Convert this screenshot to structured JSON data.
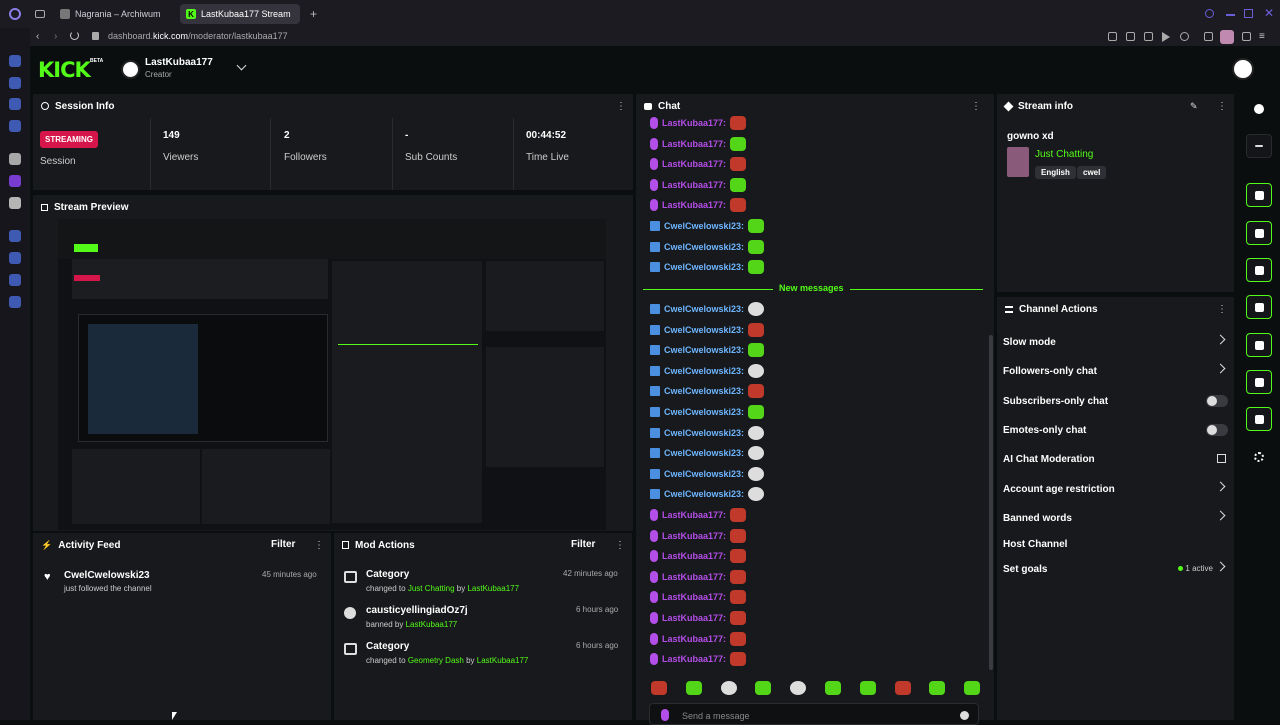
{
  "browser": {
    "tabs": [
      {
        "label": "Nagrania – Archiwum",
        "active": false
      },
      {
        "label": "LastKubaa177 Stream",
        "active": true
      }
    ],
    "new_tab": "+",
    "url_pre": "dashboard.",
    "url_host": "kick.com",
    "url_path": "/moderator/lastkubaa177"
  },
  "header": {
    "logo": "KICK",
    "beta": "BETA",
    "username": "LastKubaa177",
    "role": "Creator"
  },
  "session": {
    "title": "Session Info",
    "status": "STREAMING",
    "status_label": "Session",
    "stats": [
      {
        "value": "149",
        "label": "Viewers"
      },
      {
        "value": "2",
        "label": "Followers"
      },
      {
        "value": "-",
        "label": "Sub Counts"
      },
      {
        "value": "00:44:52",
        "label": "Time Live"
      }
    ]
  },
  "preview": {
    "title": "Stream Preview"
  },
  "activity": {
    "title": "Activity Feed",
    "filter": "Filter",
    "items": [
      {
        "user": "CwelCwelowski23",
        "text": "just followed the channel",
        "time": "45 minutes ago"
      }
    ]
  },
  "mod": {
    "title": "Mod Actions",
    "filter": "Filter",
    "items": [
      {
        "title": "Category",
        "pre": "changed to",
        "target": "Just Chatting",
        "by": "by",
        "actor": "LastKubaa177",
        "time": "42 minutes ago"
      },
      {
        "title": "causticyellingiadOz7j",
        "pre": "banned by",
        "target": "",
        "by": "",
        "actor": "LastKubaa177",
        "time": "6 hours ago"
      },
      {
        "title": "Category",
        "pre": "changed to",
        "target": "Geometry Dash",
        "by": "by",
        "actor": "LastKubaa177",
        "time": "6 hours ago"
      }
    ]
  },
  "chat": {
    "title": "Chat",
    "new_messages": "New messages",
    "rows_top": [
      {
        "user": "LastKubaa177:",
        "kind": "mod",
        "emote": "red"
      },
      {
        "user": "LastKubaa177:",
        "kind": "mod",
        "emote": "green"
      },
      {
        "user": "LastKubaa177:",
        "kind": "mod",
        "emote": "red"
      },
      {
        "user": "LastKubaa177:",
        "kind": "mod",
        "emote": "green"
      },
      {
        "user": "LastKubaa177:",
        "kind": "mod",
        "emote": "red"
      },
      {
        "user": "CwelCwelowski23:",
        "kind": "viewer",
        "emote": "green"
      },
      {
        "user": "CwelCwelowski23:",
        "kind": "viewer",
        "emote": "green"
      },
      {
        "user": "CwelCwelowski23:",
        "kind": "viewer",
        "emote": "green"
      }
    ],
    "rows_bottom": [
      {
        "user": "CwelCwelowski23:",
        "kind": "viewer",
        "emote": "white"
      },
      {
        "user": "CwelCwelowski23:",
        "kind": "viewer",
        "emote": "red"
      },
      {
        "user": "CwelCwelowski23:",
        "kind": "viewer",
        "emote": "green"
      },
      {
        "user": "CwelCwelowski23:",
        "kind": "viewer",
        "emote": "white"
      },
      {
        "user": "CwelCwelowski23:",
        "kind": "viewer",
        "emote": "red"
      },
      {
        "user": "CwelCwelowski23:",
        "kind": "viewer",
        "emote": "green"
      },
      {
        "user": "CwelCwelowski23:",
        "kind": "viewer",
        "emote": "white"
      },
      {
        "user": "CwelCwelowski23:",
        "kind": "viewer",
        "emote": "white"
      },
      {
        "user": "CwelCwelowski23:",
        "kind": "viewer",
        "emote": "white"
      },
      {
        "user": "CwelCwelowski23:",
        "kind": "viewer",
        "emote": "white"
      },
      {
        "user": "LastKubaa177:",
        "kind": "mod",
        "emote": "red"
      },
      {
        "user": "LastKubaa177:",
        "kind": "mod",
        "emote": "red"
      },
      {
        "user": "LastKubaa177:",
        "kind": "mod",
        "emote": "red"
      },
      {
        "user": "LastKubaa177:",
        "kind": "mod",
        "emote": "red"
      },
      {
        "user": "LastKubaa177:",
        "kind": "mod",
        "emote": "red"
      },
      {
        "user": "LastKubaa177:",
        "kind": "mod",
        "emote": "red"
      },
      {
        "user": "LastKubaa177:",
        "kind": "mod",
        "emote": "red"
      },
      {
        "user": "LastKubaa177:",
        "kind": "mod",
        "emote": "red"
      }
    ],
    "emote_bar": [
      "red",
      "green",
      "white",
      "green",
      "white",
      "green",
      "green",
      "red",
      "green",
      "green"
    ],
    "placeholder": "Send a message"
  },
  "stream_info": {
    "title": "Stream info",
    "stream_title": "gowno xd",
    "category": "Just Chatting",
    "tags": [
      "English",
      "cwel"
    ]
  },
  "channel_actions": {
    "title": "Channel Actions",
    "items": [
      {
        "label": "Slow mode",
        "control": "chevron"
      },
      {
        "label": "Followers-only chat",
        "control": "chevron"
      },
      {
        "label": "Subscribers-only chat",
        "control": "toggle"
      },
      {
        "label": "Emotes-only chat",
        "control": "toggle"
      },
      {
        "label": "AI Chat Moderation",
        "control": "external"
      },
      {
        "label": "Account age restriction",
        "control": "chevron"
      },
      {
        "label": "Banned words",
        "control": "chevron"
      },
      {
        "label": "Host Channel",
        "control": "none"
      },
      {
        "label": "Set goals",
        "control": "chevron"
      }
    ],
    "goals_status": "1 active"
  },
  "colors": {
    "accent": "#53fc18",
    "mod": "#b44ee9",
    "streaming": "#d6164b"
  },
  "icons": [
    "info-icon",
    "pencil-icon",
    "scan-icon",
    "lightning-icon",
    "document-icon",
    "chat-icon",
    "broadcast-icon",
    "layout-icon",
    "wrench-icon",
    "apps-icon"
  ]
}
